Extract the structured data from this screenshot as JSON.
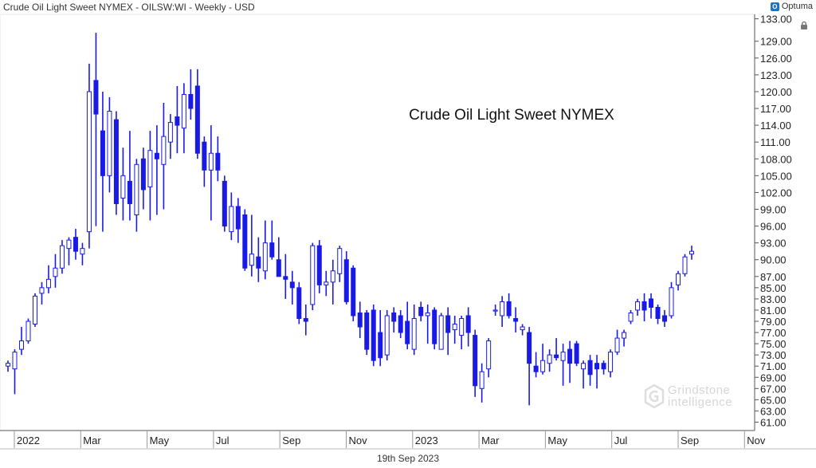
{
  "header": {
    "title": "Crude Oil Light Sweet NYMEX - OILSW:WI - Weekly - USD",
    "brand": "Optuma",
    "date": "19th Sep 2023"
  },
  "watermark": {
    "line1": "Grindstone",
    "line2": "intelligence"
  },
  "colors": {
    "up": "#1a1ae8",
    "down": "#1a1ae8",
    "axis": "#555555",
    "watermark": "#c8c8c8"
  },
  "chart_data": {
    "type": "candlestick",
    "title": "Crude Oil Light Sweet NYMEX",
    "xlabel": "",
    "ylabel": "",
    "ylim": [
      59.5,
      133.8
    ],
    "y_ticks": [
      133,
      129,
      126,
      123,
      120,
      117,
      114,
      111,
      108,
      105,
      102,
      99,
      96,
      93,
      90,
      87,
      85,
      83,
      81,
      79,
      77,
      75,
      73,
      71,
      69,
      67,
      65,
      63,
      61
    ],
    "x_ticks": [
      "2022",
      "Mar",
      "May",
      "Jul",
      "Sep",
      "Nov",
      "2023",
      "Mar",
      "May",
      "Jul",
      "Sep",
      "Nov"
    ],
    "grid": false,
    "candles": [
      {
        "o": 71.0,
        "h": 72.0,
        "l": 70.0,
        "c": 71.5
      },
      {
        "o": 70.5,
        "h": 74.0,
        "l": 66.0,
        "c": 73.5
      },
      {
        "o": 74.0,
        "h": 78.0,
        "l": 73.0,
        "c": 75.5
      },
      {
        "o": 75.5,
        "h": 79.5,
        "l": 75.0,
        "c": 79.0
      },
      {
        "o": 78.5,
        "h": 84.0,
        "l": 78.0,
        "c": 83.5
      },
      {
        "o": 84.0,
        "h": 86.0,
        "l": 82.0,
        "c": 85.0
      },
      {
        "o": 85.0,
        "h": 89.0,
        "l": 84.0,
        "c": 86.5
      },
      {
        "o": 87.0,
        "h": 91.0,
        "l": 85.0,
        "c": 88.5
      },
      {
        "o": 88.5,
        "h": 93.5,
        "l": 87.5,
        "c": 92.5
      },
      {
        "o": 92.0,
        "h": 94.0,
        "l": 89.0,
        "c": 93.5
      },
      {
        "o": 94.0,
        "h": 95.5,
        "l": 90.0,
        "c": 91.5
      },
      {
        "o": 91.0,
        "h": 93.0,
        "l": 89.0,
        "c": 92.0
      },
      {
        "o": 95.0,
        "h": 125.0,
        "l": 92.0,
        "c": 120.0
      },
      {
        "o": 122.0,
        "h": 130.5,
        "l": 96.0,
        "c": 116.0
      },
      {
        "o": 113.0,
        "h": 120.0,
        "l": 95.0,
        "c": 105.0
      },
      {
        "o": 105.0,
        "h": 119.0,
        "l": 102.0,
        "c": 116.5
      },
      {
        "o": 115.0,
        "h": 116.5,
        "l": 98.0,
        "c": 100.0
      },
      {
        "o": 101.0,
        "h": 110.0,
        "l": 97.0,
        "c": 105.0
      },
      {
        "o": 104.0,
        "h": 113.0,
        "l": 97.0,
        "c": 100.0
      },
      {
        "o": 98.0,
        "h": 108.0,
        "l": 95.0,
        "c": 107.0
      },
      {
        "o": 108.0,
        "h": 110.0,
        "l": 99.0,
        "c": 102.5
      },
      {
        "o": 103.0,
        "h": 113.0,
        "l": 97.0,
        "c": 109.5
      },
      {
        "o": 109.0,
        "h": 114.0,
        "l": 98.0,
        "c": 108.0
      },
      {
        "o": 107.0,
        "h": 118.0,
        "l": 99.0,
        "c": 112.0
      },
      {
        "o": 111.0,
        "h": 116.0,
        "l": 108.0,
        "c": 114.5
      },
      {
        "o": 115.5,
        "h": 121.0,
        "l": 109.0,
        "c": 114.0
      },
      {
        "o": 113.5,
        "h": 121.5,
        "l": 109.0,
        "c": 119.5
      },
      {
        "o": 119.5,
        "h": 124.0,
        "l": 115.0,
        "c": 117.0
      },
      {
        "o": 121.0,
        "h": 124.0,
        "l": 108.0,
        "c": 109.0
      },
      {
        "o": 111.0,
        "h": 112.0,
        "l": 103.0,
        "c": 106.0
      },
      {
        "o": 106.0,
        "h": 114.0,
        "l": 97.0,
        "c": 109.0
      },
      {
        "o": 109.0,
        "h": 112.0,
        "l": 104.0,
        "c": 106.0
      },
      {
        "o": 104.0,
        "h": 105.0,
        "l": 95.0,
        "c": 96.0
      },
      {
        "o": 95.0,
        "h": 102.0,
        "l": 93.5,
        "c": 99.5
      },
      {
        "o": 99.5,
        "h": 101.0,
        "l": 93.0,
        "c": 95.5
      },
      {
        "o": 98.0,
        "h": 99.0,
        "l": 88.0,
        "c": 88.5
      },
      {
        "o": 89.0,
        "h": 98.0,
        "l": 87.0,
        "c": 91.0
      },
      {
        "o": 90.5,
        "h": 94.0,
        "l": 86.0,
        "c": 88.5
      },
      {
        "o": 88.0,
        "h": 97.0,
        "l": 86.5,
        "c": 93.0
      },
      {
        "o": 93.0,
        "h": 97.0,
        "l": 90.0,
        "c": 90.5
      },
      {
        "o": 90.0,
        "h": 94.0,
        "l": 87.0,
        "c": 87.0
      },
      {
        "o": 87.0,
        "h": 91.0,
        "l": 83.0,
        "c": 86.5
      },
      {
        "o": 86.0,
        "h": 88.0,
        "l": 82.0,
        "c": 85.0
      },
      {
        "o": 85.0,
        "h": 86.0,
        "l": 78.5,
        "c": 79.5
      },
      {
        "o": 79.5,
        "h": 82.0,
        "l": 76.5,
        "c": 79.0
      },
      {
        "o": 82.0,
        "h": 93.0,
        "l": 81.0,
        "c": 92.5
      },
      {
        "o": 92.5,
        "h": 93.5,
        "l": 84.0,
        "c": 85.5
      },
      {
        "o": 85.5,
        "h": 88.0,
        "l": 83.5,
        "c": 86.0
      },
      {
        "o": 86.0,
        "h": 90.0,
        "l": 82.0,
        "c": 88.0
      },
      {
        "o": 87.5,
        "h": 92.5,
        "l": 86.0,
        "c": 92.0
      },
      {
        "o": 90.0,
        "h": 91.5,
        "l": 82.0,
        "c": 82.5
      },
      {
        "o": 88.5,
        "h": 89.0,
        "l": 79.0,
        "c": 80.0
      },
      {
        "o": 80.5,
        "h": 82.5,
        "l": 76.0,
        "c": 78.0
      },
      {
        "o": 80.5,
        "h": 81.0,
        "l": 73.0,
        "c": 74.0
      },
      {
        "o": 81.0,
        "h": 82.0,
        "l": 71.0,
        "c": 72.0
      },
      {
        "o": 77.0,
        "h": 81.0,
        "l": 71.0,
        "c": 72.5
      },
      {
        "o": 73.0,
        "h": 81.0,
        "l": 72.0,
        "c": 80.0
      },
      {
        "o": 80.5,
        "h": 81.5,
        "l": 77.0,
        "c": 79.0
      },
      {
        "o": 80.0,
        "h": 81.0,
        "l": 76.0,
        "c": 77.0
      },
      {
        "o": 79.0,
        "h": 82.5,
        "l": 74.0,
        "c": 75.0
      },
      {
        "o": 74.0,
        "h": 82.0,
        "l": 73.0,
        "c": 79.5
      },
      {
        "o": 81.5,
        "h": 82.5,
        "l": 79.0,
        "c": 80.0
      },
      {
        "o": 80.0,
        "h": 82.0,
        "l": 75.0,
        "c": 80.5
      },
      {
        "o": 81.0,
        "h": 81.5,
        "l": 74.0,
        "c": 75.0
      },
      {
        "o": 74.0,
        "h": 80.5,
        "l": 74.0,
        "c": 80.0
      },
      {
        "o": 80.0,
        "h": 81.5,
        "l": 73.0,
        "c": 77.0
      },
      {
        "o": 77.5,
        "h": 80.0,
        "l": 75.0,
        "c": 78.5
      },
      {
        "o": 76.5,
        "h": 80.0,
        "l": 74.0,
        "c": 79.5
      },
      {
        "o": 80.0,
        "h": 81.5,
        "l": 74.5,
        "c": 77.0
      },
      {
        "o": 76.5,
        "h": 77.5,
        "l": 65.5,
        "c": 67.5
      },
      {
        "o": 67.0,
        "h": 71.5,
        "l": 64.5,
        "c": 70.0
      },
      {
        "o": 70.5,
        "h": 76.0,
        "l": 69.0,
        "c": 75.5
      },
      {
        "o": 81.0,
        "h": 82.0,
        "l": 80.0,
        "c": 81.0
      },
      {
        "o": 80.0,
        "h": 83.5,
        "l": 78.0,
        "c": 82.5
      },
      {
        "o": 82.5,
        "h": 84.0,
        "l": 79.5,
        "c": 80.0
      },
      {
        "o": 79.5,
        "h": 81.5,
        "l": 77.0,
        "c": 79.0
      },
      {
        "o": 77.5,
        "h": 78.5,
        "l": 76.5,
        "c": 78.0
      },
      {
        "o": 77.0,
        "h": 78.0,
        "l": 64.0,
        "c": 71.5
      },
      {
        "o": 71.0,
        "h": 73.5,
        "l": 69.0,
        "c": 70.0
      },
      {
        "o": 70.0,
        "h": 75.0,
        "l": 69.5,
        "c": 72.0
      },
      {
        "o": 71.5,
        "h": 74.0,
        "l": 70.0,
        "c": 73.0
      },
      {
        "o": 73.0,
        "h": 76.0,
        "l": 72.0,
        "c": 72.5
      },
      {
        "o": 72.0,
        "h": 75.0,
        "l": 67.5,
        "c": 73.5
      },
      {
        "o": 74.0,
        "h": 75.5,
        "l": 68.0,
        "c": 71.5
      },
      {
        "o": 75.0,
        "h": 75.5,
        "l": 71.0,
        "c": 71.5
      },
      {
        "o": 70.5,
        "h": 72.0,
        "l": 67.0,
        "c": 71.5
      },
      {
        "o": 72.0,
        "h": 73.0,
        "l": 67.5,
        "c": 69.5
      },
      {
        "o": 71.5,
        "h": 73.0,
        "l": 67.0,
        "c": 70.5
      },
      {
        "o": 71.5,
        "h": 72.0,
        "l": 69.5,
        "c": 70.5
      },
      {
        "o": 70.0,
        "h": 74.0,
        "l": 69.0,
        "c": 73.5
      },
      {
        "o": 73.5,
        "h": 77.5,
        "l": 73.0,
        "c": 76.0
      },
      {
        "o": 76.0,
        "h": 77.5,
        "l": 74.5,
        "c": 77.0
      },
      {
        "o": 79.0,
        "h": 81.0,
        "l": 78.5,
        "c": 80.5
      },
      {
        "o": 81.0,
        "h": 83.0,
        "l": 80.0,
        "c": 82.5
      },
      {
        "o": 82.5,
        "h": 84.0,
        "l": 79.0,
        "c": 81.0
      },
      {
        "o": 83.0,
        "h": 84.0,
        "l": 79.5,
        "c": 81.5
      },
      {
        "o": 81.5,
        "h": 82.0,
        "l": 78.5,
        "c": 79.5
      },
      {
        "o": 80.0,
        "h": 81.0,
        "l": 78.0,
        "c": 79.0
      },
      {
        "o": 80.0,
        "h": 86.0,
        "l": 79.5,
        "c": 85.0
      },
      {
        "o": 85.5,
        "h": 88.0,
        "l": 84.5,
        "c": 87.5
      },
      {
        "o": 87.5,
        "h": 91.0,
        "l": 87.0,
        "c": 90.5
      },
      {
        "o": 91.0,
        "h": 92.5,
        "l": 90.0,
        "c": 91.5
      }
    ]
  }
}
